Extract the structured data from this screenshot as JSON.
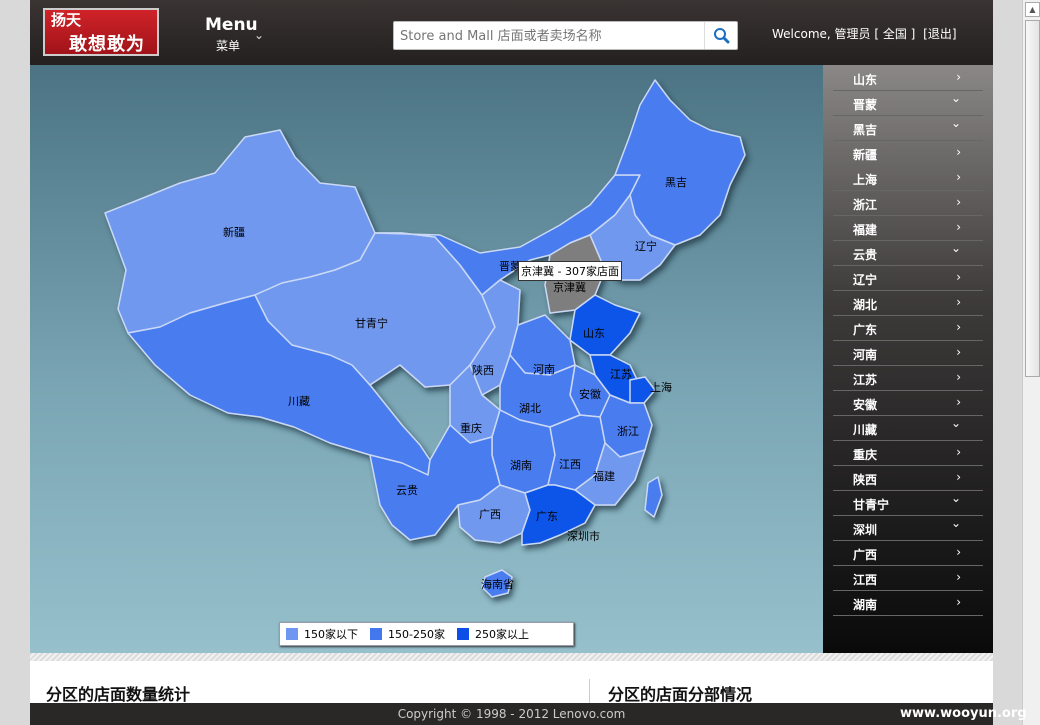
{
  "header": {
    "logo_line1": "扬天",
    "logo_line2": "敢想敢为",
    "menu_title": "Menu",
    "menu_sub": "菜单",
    "search_placeholder": "Store and Mall 店面或者卖场名称",
    "welcome": "Welcome, 管理员 [ 全国 ]",
    "logout": "[退出]"
  },
  "map": {
    "tooltip": "京津冀 - 307家店面",
    "labels": [
      {
        "text": "新疆"
      },
      {
        "text": "黑吉"
      },
      {
        "text": "辽宁"
      },
      {
        "text": "晋蒙"
      },
      {
        "text": "京津冀"
      },
      {
        "text": "甘青宁"
      },
      {
        "text": "山东"
      },
      {
        "text": "河南"
      },
      {
        "text": "陕西"
      },
      {
        "text": "江苏"
      },
      {
        "text": "上海"
      },
      {
        "text": "川藏"
      },
      {
        "text": "安徽"
      },
      {
        "text": "湖北"
      },
      {
        "text": "重庆"
      },
      {
        "text": "浙江"
      },
      {
        "text": "湖南"
      },
      {
        "text": "江西"
      },
      {
        "text": "福建"
      },
      {
        "text": "云贵"
      },
      {
        "text": "广西"
      },
      {
        "text": "广东"
      },
      {
        "text": "深圳市"
      },
      {
        "text": "海南省"
      }
    ],
    "legend": [
      {
        "label": "150家以下",
        "color": "#6f97f2"
      },
      {
        "label": "150-250家",
        "color": "#4277ee"
      },
      {
        "label": "250家以上",
        "color": "#0d4fe6"
      }
    ]
  },
  "colors": {
    "light": "#7098ef",
    "mid": "#4a7bef",
    "dark": "#1054e8",
    "gray": "#7e7e7e"
  },
  "sidebar": {
    "items": [
      {
        "label": "山东",
        "icon": "chevron-right"
      },
      {
        "label": "晋蒙",
        "icon": "chevron-down"
      },
      {
        "label": "黑吉",
        "icon": "chevron-down"
      },
      {
        "label": "新疆",
        "icon": "chevron-right"
      },
      {
        "label": "上海",
        "icon": "chevron-right"
      },
      {
        "label": "浙江",
        "icon": "chevron-right"
      },
      {
        "label": "福建",
        "icon": "chevron-right"
      },
      {
        "label": "云贵",
        "icon": "chevron-down"
      },
      {
        "label": "辽宁",
        "icon": "chevron-right"
      },
      {
        "label": "湖北",
        "icon": "chevron-right"
      },
      {
        "label": "广东",
        "icon": "chevron-right"
      },
      {
        "label": "河南",
        "icon": "chevron-right"
      },
      {
        "label": "江苏",
        "icon": "chevron-right"
      },
      {
        "label": "安徽",
        "icon": "chevron-right"
      },
      {
        "label": "川藏",
        "icon": "chevron-down"
      },
      {
        "label": "重庆",
        "icon": "chevron-right"
      },
      {
        "label": "陕西",
        "icon": "chevron-right"
      },
      {
        "label": "甘青宁",
        "icon": "chevron-down"
      },
      {
        "label": "深圳",
        "icon": "chevron-down"
      },
      {
        "label": "广西",
        "icon": "chevron-right"
      },
      {
        "label": "江西",
        "icon": "chevron-right"
      },
      {
        "label": "湖南",
        "icon": "chevron-right"
      }
    ]
  },
  "sections": {
    "left_title": "分区的店面数量统计",
    "right_title": "分区的店面分部情况"
  },
  "footer": {
    "copyright": "Copyright © 1998 - 2012 Lenovo.com"
  },
  "watermark": "www.wooyun.org"
}
